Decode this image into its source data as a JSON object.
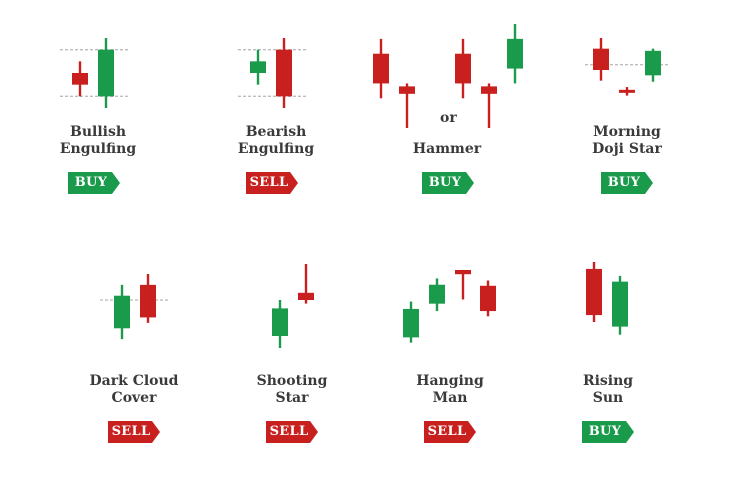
{
  "colors": {
    "bullish": "#1a9a4b",
    "bearish": "#c8201f",
    "buy_badge": "#1a9a4b",
    "sell_badge": "#c8201f",
    "guide_line": "#bdbdbd",
    "text": "#3a3a3a"
  },
  "patterns": [
    {
      "id": "bullish-engulfing",
      "name_lines": [
        "Bullish",
        "Engulfing"
      ],
      "signal": "BUY",
      "guides": true,
      "candles": [
        {
          "direction": "down",
          "high": 4,
          "open": 3,
          "close": 2,
          "low": 1
        },
        {
          "direction": "up",
          "high": 6,
          "open": 1,
          "close": 5,
          "low": 0
        }
      ]
    },
    {
      "id": "bearish-engulfing",
      "name_lines": [
        "Bearish",
        "Engulfing"
      ],
      "signal": "SELL",
      "guides": true,
      "candles": [
        {
          "direction": "up",
          "high": 5,
          "open": 3,
          "close": 4,
          "low": 2
        },
        {
          "direction": "down",
          "high": 6,
          "open": 5,
          "close": 1,
          "low": 0
        }
      ]
    },
    {
      "id": "hammer",
      "name_lines": [
        "Hammer"
      ],
      "signal": "BUY",
      "connector": "or",
      "candles": [
        {
          "direction": "down",
          "high": 6,
          "open": 5,
          "close": 3,
          "low": 2
        },
        {
          "direction": "down",
          "high": 3,
          "open": 2.8,
          "close": 2.3,
          "low": 0
        },
        {
          "direction": "down",
          "high": 6,
          "open": 5,
          "close": 3,
          "low": 2
        },
        {
          "direction": "down",
          "high": 3,
          "open": 2.8,
          "close": 2.3,
          "low": 0
        },
        {
          "direction": "up",
          "high": 7,
          "open": 4,
          "close": 6,
          "low": 3
        }
      ]
    },
    {
      "id": "morning-doji-star",
      "name_lines": [
        "Morning",
        "Doji Star"
      ],
      "signal": "BUY",
      "guides": "single",
      "candles": [
        {
          "direction": "down",
          "high": 6,
          "open": 5,
          "close": 3,
          "low": 2
        },
        {
          "direction": "doji",
          "high": 1.4,
          "open": 1,
          "close": 1,
          "low": 0.6
        },
        {
          "direction": "up",
          "high": 5,
          "open": 2.5,
          "close": 4.8,
          "low": 1.9
        }
      ]
    },
    {
      "id": "dark-cloud-cover",
      "name_lines": [
        "Dark Cloud",
        "Cover"
      ],
      "signal": "SELL",
      "guides": "single",
      "candles": [
        {
          "direction": "up",
          "high": 6,
          "open": 2,
          "close": 5,
          "low": 1
        },
        {
          "direction": "down",
          "high": 7,
          "open": 6,
          "close": 3,
          "low": 2.5
        }
      ]
    },
    {
      "id": "shooting-star",
      "name_lines": [
        "Shooting",
        "Star"
      ],
      "signal": "SELL",
      "candles": [
        {
          "direction": "up",
          "high": 5,
          "open": 2,
          "close": 4.3,
          "low": 1
        },
        {
          "direction": "down",
          "high": 8,
          "open": 5.6,
          "close": 5,
          "low": 4.7
        }
      ]
    },
    {
      "id": "hanging-man",
      "name_lines": [
        "Hanging",
        "Man"
      ],
      "signal": "SELL",
      "candles": [
        {
          "direction": "up",
          "high": 4.6,
          "open": 1.2,
          "close": 3.9,
          "low": 0.7
        },
        {
          "direction": "up",
          "high": 6.8,
          "open": 4.4,
          "close": 6.2,
          "low": 3.7
        },
        {
          "direction": "down",
          "high": 7.6,
          "open": 7.6,
          "close": 7.2,
          "low": 4.8
        },
        {
          "direction": "down",
          "high": 6.6,
          "open": 6.1,
          "close": 3.7,
          "low": 3.2
        }
      ]
    },
    {
      "id": "rising-sun",
      "name_lines": [
        "Rising",
        "Sun"
      ],
      "signal": "BUY",
      "candles": [
        {
          "direction": "down",
          "high": 7.8,
          "open": 7.2,
          "close": 3.2,
          "low": 2.6
        },
        {
          "direction": "up",
          "high": 6.6,
          "open": 2.2,
          "close": 6.1,
          "low": 1.5
        }
      ]
    }
  ]
}
